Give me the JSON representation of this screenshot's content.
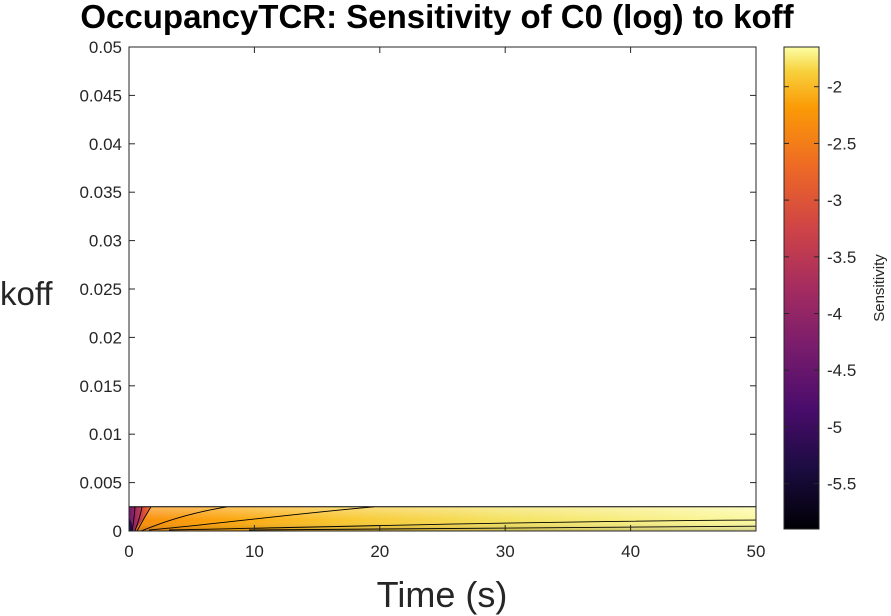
{
  "chart_data": {
    "type": "heatmap",
    "title": "OccupancyTCR: Sensitivity of C0 (log) to koff",
    "xlabel": "Time (s)",
    "ylabel": "koff",
    "xlim": [
      0,
      50
    ],
    "ylim": [
      0,
      0.05
    ],
    "xticks": [
      "0",
      "10",
      "20",
      "30",
      "40",
      "50"
    ],
    "xtick_values": [
      0,
      10,
      20,
      30,
      40,
      50
    ],
    "yticks": [
      "0",
      "0.005",
      "0.01",
      "0.015",
      "0.02",
      "0.025",
      "0.03",
      "0.035",
      "0.04",
      "0.045",
      "0.05"
    ],
    "ytick_values": [
      0,
      0.005,
      0.01,
      0.015,
      0.02,
      0.025,
      0.03,
      0.035,
      0.04,
      0.045,
      0.05
    ],
    "data_extent": {
      "x": [
        0,
        50
      ],
      "y": [
        0,
        0.0025
      ]
    },
    "colormap": "inferno",
    "colorbar": {
      "label": "Sensitivity",
      "clim": [
        -5.9,
        -1.65
      ],
      "ticks": [
        "-2",
        "-2.5",
        "-3",
        "-3.5",
        "-4",
        "-4.5",
        "-5",
        "-5.5"
      ],
      "tick_values": [
        -2,
        -2.5,
        -3,
        -3.5,
        -4,
        -4.5,
        -5,
        -5.5
      ],
      "location": "right"
    },
    "grid": false
  }
}
